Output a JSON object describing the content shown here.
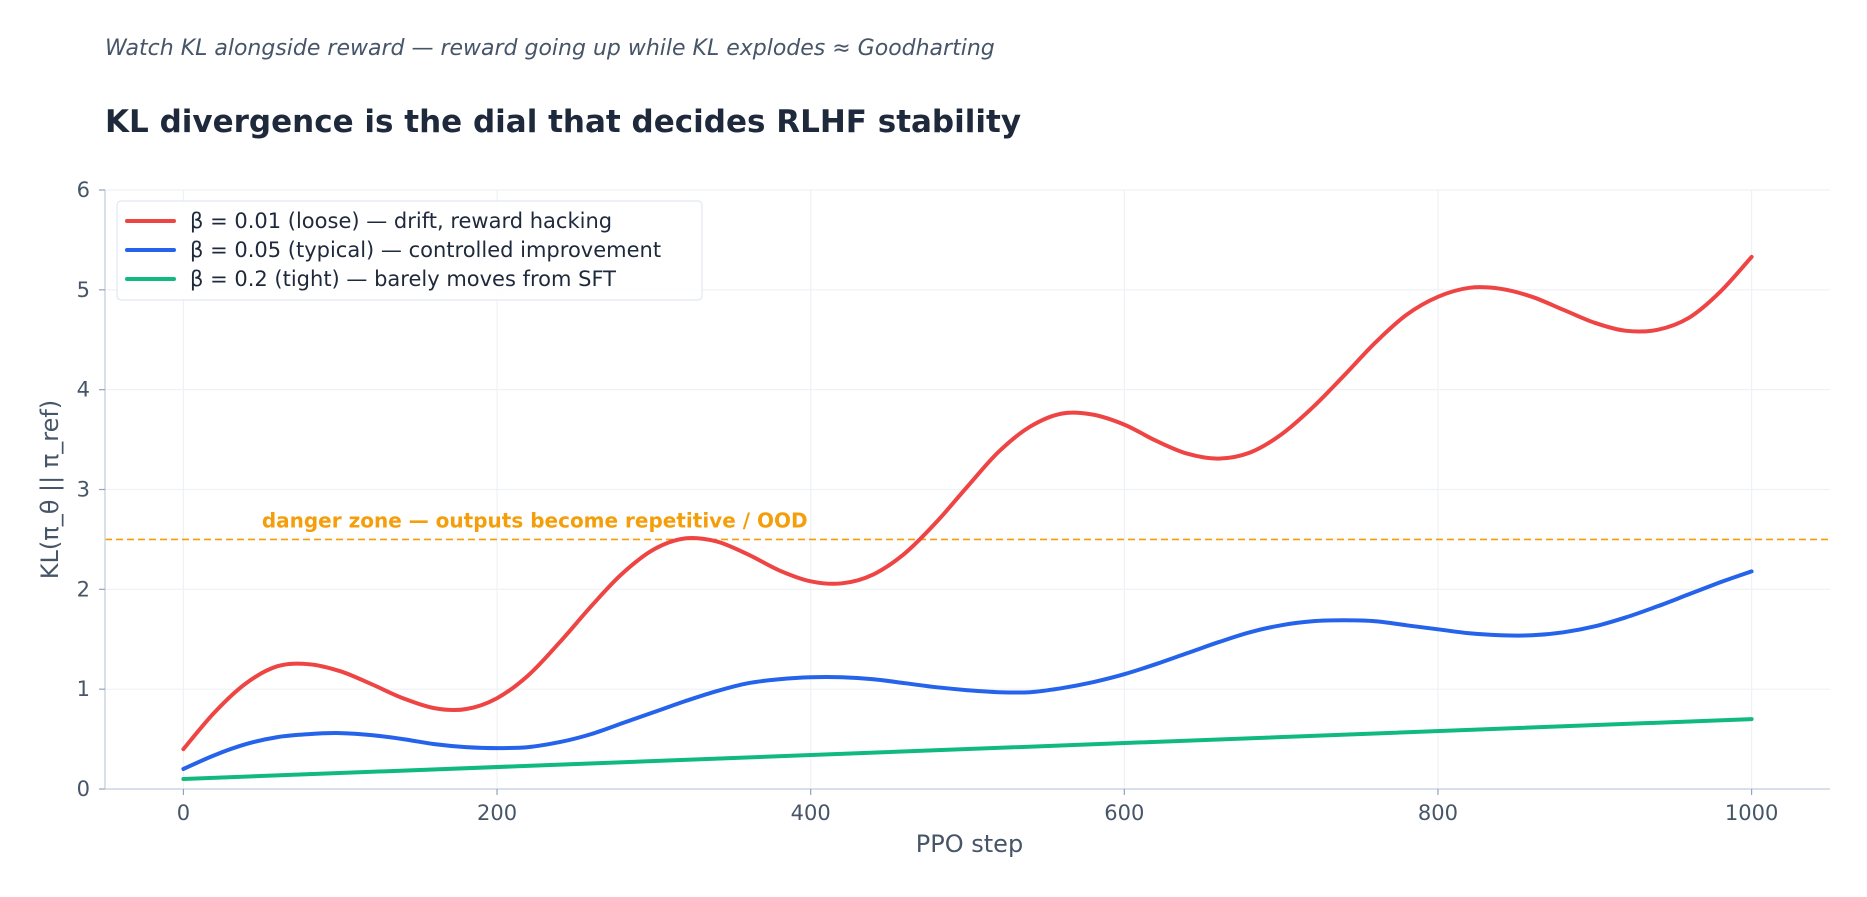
{
  "header": {
    "subtitle": "Watch KL alongside reward — reward going up while KL explodes ≈ Goodharting",
    "title": "KL divergence is the dial that decides RLHF stability"
  },
  "chart_data": {
    "type": "line",
    "xlabel": "PPO step",
    "ylabel": "KL(π_θ || π_ref)",
    "xlim": [
      -50,
      1050
    ],
    "ylim": [
      0,
      6
    ],
    "xticks": [
      0,
      200,
      400,
      600,
      800,
      1000
    ],
    "yticks": [
      0,
      1,
      2,
      3,
      4,
      5,
      6
    ],
    "grid": true,
    "legend_position": "top-left",
    "threshold": {
      "y": 2.5,
      "label": "danger zone — outputs become repetitive / OOD",
      "label_x": 50,
      "label_y": 2.62,
      "color": "#f59e0b"
    },
    "series": [
      {
        "name": "β = 0.01 (loose) — drift, reward hacking",
        "color": "#ef4444",
        "x": [
          0,
          20,
          40,
          60,
          80,
          100,
          120,
          140,
          160,
          180,
          200,
          220,
          240,
          260,
          280,
          300,
          320,
          340,
          360,
          380,
          400,
          420,
          440,
          460,
          480,
          500,
          520,
          540,
          560,
          580,
          600,
          620,
          640,
          660,
          680,
          700,
          720,
          740,
          760,
          780,
          800,
          820,
          840,
          860,
          880,
          900,
          920,
          940,
          960,
          980,
          1000
        ],
        "values": [
          0.4,
          0.77,
          1.06,
          1.23,
          1.25,
          1.18,
          1.05,
          0.91,
          0.81,
          0.8,
          0.91,
          1.14,
          1.47,
          1.83,
          2.16,
          2.4,
          2.51,
          2.48,
          2.35,
          2.19,
          2.08,
          2.06,
          2.15,
          2.36,
          2.67,
          3.03,
          3.38,
          3.63,
          3.76,
          3.75,
          3.65,
          3.49,
          3.36,
          3.31,
          3.37,
          3.55,
          3.82,
          4.14,
          4.47,
          4.75,
          4.93,
          5.02,
          5.01,
          4.93,
          4.8,
          4.67,
          4.59,
          4.6,
          4.72,
          4.98,
          5.33
        ]
      },
      {
        "name": "β = 0.05 (typical) — controlled improvement",
        "color": "#2563eb",
        "x": [
          0,
          20,
          40,
          60,
          80,
          100,
          120,
          140,
          160,
          180,
          200,
          220,
          240,
          260,
          280,
          300,
          320,
          340,
          360,
          380,
          400,
          420,
          440,
          460,
          480,
          500,
          520,
          540,
          560,
          580,
          600,
          620,
          640,
          660,
          680,
          700,
          720,
          740,
          760,
          780,
          800,
          820,
          840,
          860,
          880,
          900,
          920,
          940,
          960,
          980,
          1000
        ],
        "values": [
          0.2,
          0.34,
          0.45,
          0.52,
          0.55,
          0.56,
          0.54,
          0.5,
          0.45,
          0.42,
          0.41,
          0.42,
          0.47,
          0.55,
          0.66,
          0.77,
          0.88,
          0.98,
          1.06,
          1.1,
          1.12,
          1.12,
          1.1,
          1.06,
          1.02,
          0.99,
          0.97,
          0.97,
          1.01,
          1.07,
          1.15,
          1.25,
          1.36,
          1.47,
          1.57,
          1.64,
          1.68,
          1.69,
          1.68,
          1.64,
          1.6,
          1.56,
          1.54,
          1.54,
          1.57,
          1.63,
          1.72,
          1.83,
          1.95,
          2.07,
          2.18
        ]
      },
      {
        "name": "β = 0.2 (tight) — barely moves from SFT",
        "color": "#10b981",
        "x": [
          0,
          1000
        ],
        "values": [
          0.1,
          0.7
        ]
      }
    ]
  }
}
